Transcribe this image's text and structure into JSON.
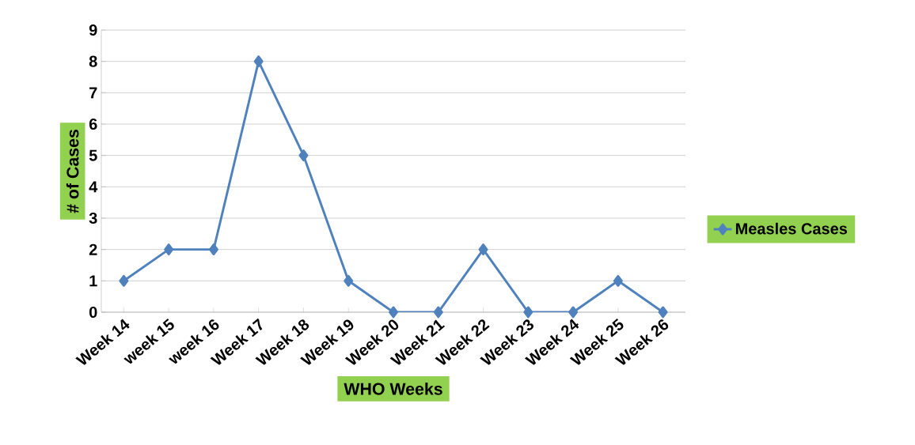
{
  "chart_data": {
    "type": "line",
    "xlabel": "WHO Weeks",
    "ylabel": "# of Cases",
    "categories": [
      "Week 14",
      "week 15",
      "week 16",
      "Week 17",
      "Week 18",
      "Week 19",
      "Week 20",
      "Week 21",
      "Week 22",
      "Week 23",
      "Week 24",
      "Week 25",
      "Week 26"
    ],
    "series": [
      {
        "name": "Measles Cases",
        "color": "#4f81bd",
        "values": [
          1,
          2,
          2,
          8,
          5,
          1,
          0,
          0,
          2,
          0,
          0,
          1,
          0
        ]
      }
    ],
    "ylim": [
      0,
      9
    ],
    "yticks": [
      0,
      1,
      2,
      3,
      4,
      5,
      6,
      7,
      8,
      9
    ],
    "grid": "y",
    "legend": "right",
    "marker": "diamond",
    "line_style": "solid"
  }
}
